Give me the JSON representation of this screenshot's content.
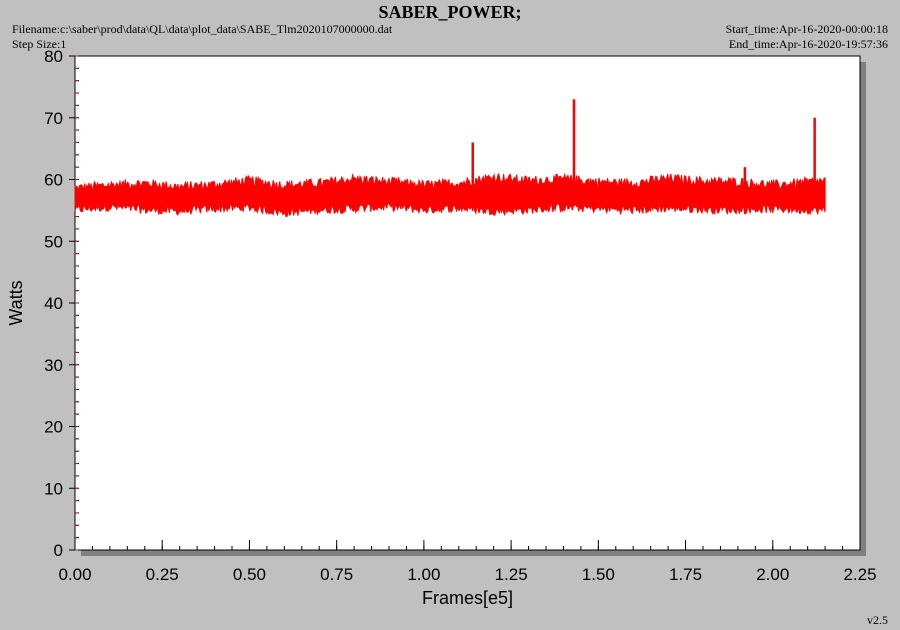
{
  "header": {
    "title": "SABER_POWER;",
    "filename": "Filename:c:\\saber\\prod\\data\\QL\\data\\plot_data\\SABE_Tlm2020107000000.dat",
    "step_size": "Step Size:1",
    "start_time": "Start_time:Apr-16-2020-00:00:18",
    "end_time": "End_time:Apr-16-2020-19:57:36",
    "version": "v2.5"
  },
  "colors": {
    "background": "#c0c0c0",
    "plot_area": "#ffffff",
    "shadow": "#808080",
    "series": "#ff0000",
    "axis": "#000000"
  },
  "chart_data": {
    "type": "line",
    "title": "SABER_POWER;",
    "xlabel": "Frames[e5]",
    "ylabel": "Watts",
    "xlim": [
      0,
      2.25
    ],
    "ylim": [
      0,
      80
    ],
    "x_ticks": [
      "0.00",
      "0.25",
      "0.50",
      "0.75",
      "1.00",
      "1.25",
      "1.50",
      "1.75",
      "2.00",
      "2.25"
    ],
    "y_ticks": [
      "0",
      "10",
      "20",
      "30",
      "40",
      "50",
      "60",
      "70",
      "80"
    ],
    "grid": false,
    "series": [
      {
        "x_range": [
          0,
          2.15
        ],
        "band_low": [
          55.0,
          55.5,
          55.0,
          54.8,
          55.2,
          55.4,
          54.5,
          55.0,
          55.2,
          55.5,
          55.0,
          55.3,
          54.8,
          55.0,
          55.4,
          55.2,
          55.0,
          55.3,
          55.1,
          55.0,
          55.2,
          54.9
        ],
        "band_high": [
          59.0,
          59.5,
          59.8,
          59.2,
          59.6,
          60.2,
          59.5,
          59.8,
          60.5,
          60.0,
          59.5,
          59.8,
          60.8,
          60.2,
          60.5,
          60.0,
          59.8,
          60.6,
          60.1,
          60.0,
          59.5,
          60.2
        ],
        "band_x": [
          0.0,
          0.1,
          0.2,
          0.3,
          0.4,
          0.5,
          0.6,
          0.7,
          0.8,
          0.9,
          1.0,
          1.1,
          1.2,
          1.3,
          1.4,
          1.5,
          1.6,
          1.7,
          1.8,
          1.9,
          2.0,
          2.15
        ],
        "spikes": [
          {
            "x": 1.14,
            "y": 66
          },
          {
            "x": 1.43,
            "y": 73
          },
          {
            "x": 1.92,
            "y": 62
          },
          {
            "x": 2.12,
            "y": 70
          }
        ]
      }
    ]
  }
}
